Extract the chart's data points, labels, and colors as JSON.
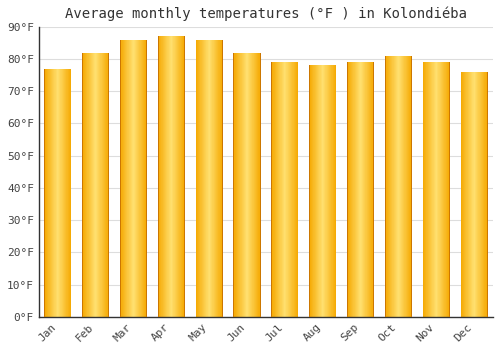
{
  "title": "Average monthly temperatures (°F ) in Kolondiéba",
  "months": [
    "Jan",
    "Feb",
    "Mar",
    "Apr",
    "May",
    "Jun",
    "Jul",
    "Aug",
    "Sep",
    "Oct",
    "Nov",
    "Dec"
  ],
  "values": [
    77,
    82,
    86,
    87,
    86,
    82,
    79,
    78,
    79,
    81,
    79,
    76
  ],
  "ylim": [
    0,
    90
  ],
  "ytick_step": 10,
  "background_color": "#FFFFFF",
  "grid_color": "#DDDDDD",
  "title_fontsize": 10,
  "tick_fontsize": 8,
  "bar_edge_color": "#E8960A",
  "bar_center_color": "#FFD050",
  "bar_mid_color": "#FFAA00",
  "spine_color": "#333333"
}
